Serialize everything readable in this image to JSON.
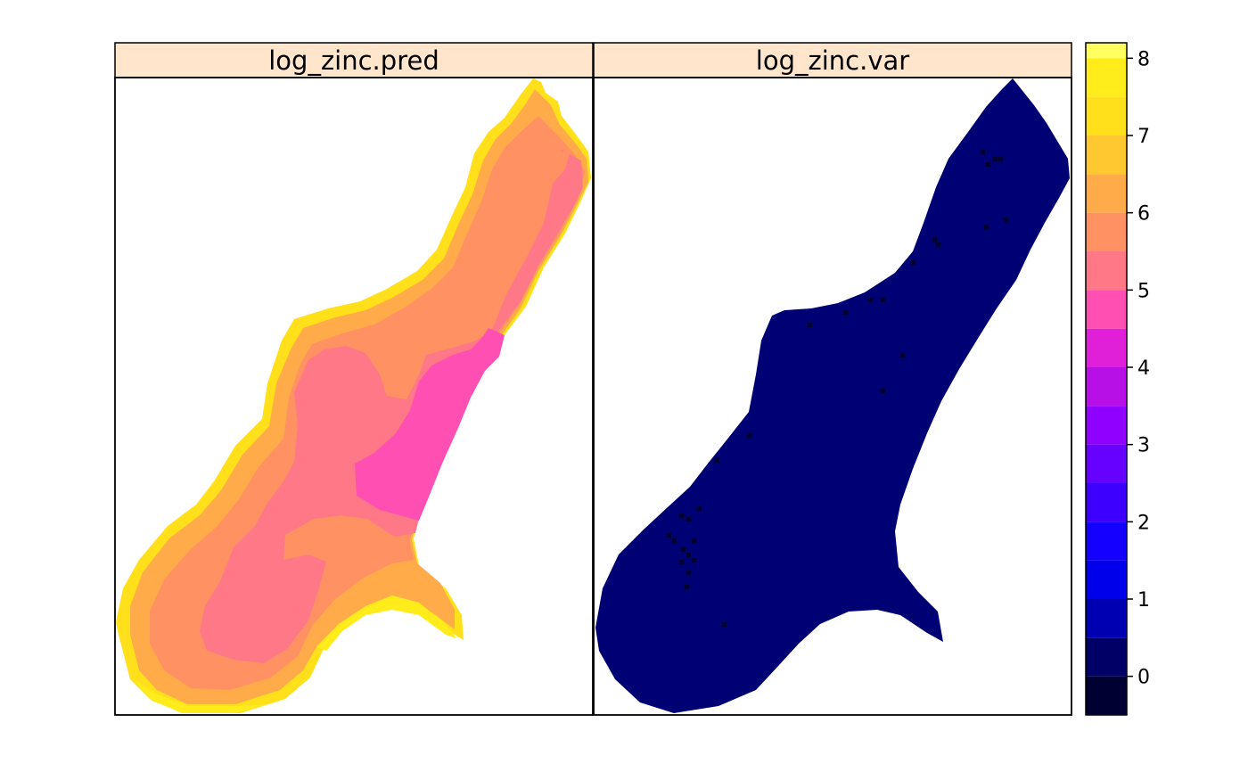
{
  "chart_data": {
    "type": "heatmap",
    "panels": [
      {
        "name": "log_zinc.pred",
        "description_colors": "values mostly between 4.5 and 7.8"
      },
      {
        "name": "log_zinc.var",
        "description_colors": "values mostly between 0 and 0.5"
      }
    ],
    "colorkey": {
      "range": [
        -0.5,
        8.2
      ],
      "breaks": [
        -0.5,
        0,
        0.5,
        1,
        1.5,
        2,
        2.5,
        3,
        3.5,
        4,
        4.5,
        5,
        5.5,
        6,
        6.5,
        7,
        7.5,
        8,
        8.2
      ],
      "ticks": [
        "0",
        "1",
        "2",
        "3",
        "4",
        "5",
        "6",
        "7",
        "8"
      ],
      "tick_values": [
        0,
        1,
        2,
        3,
        4,
        5,
        6,
        7,
        8
      ],
      "colors": [
        "#000033",
        "#000066",
        "#0000B2",
        "#0000EA",
        "#1400FF",
        "#3D00FF",
        "#6600FF",
        "#8F00FF",
        "#B710E6",
        "#E020D9",
        "#FF4FB2",
        "#FF7887",
        "#FF9163",
        "#FFAB4A",
        "#FFC830",
        "#FFE01B",
        "#FFEC1A",
        "#FFFF60"
      ]
    }
  },
  "panel_titles": [
    "log_zinc.pred",
    "log_zinc.var"
  ],
  "colors": {
    "strip": "#FFE5CC",
    "frame": "#000000",
    "var_fill": "#000075",
    "var_points": "#000033"
  }
}
